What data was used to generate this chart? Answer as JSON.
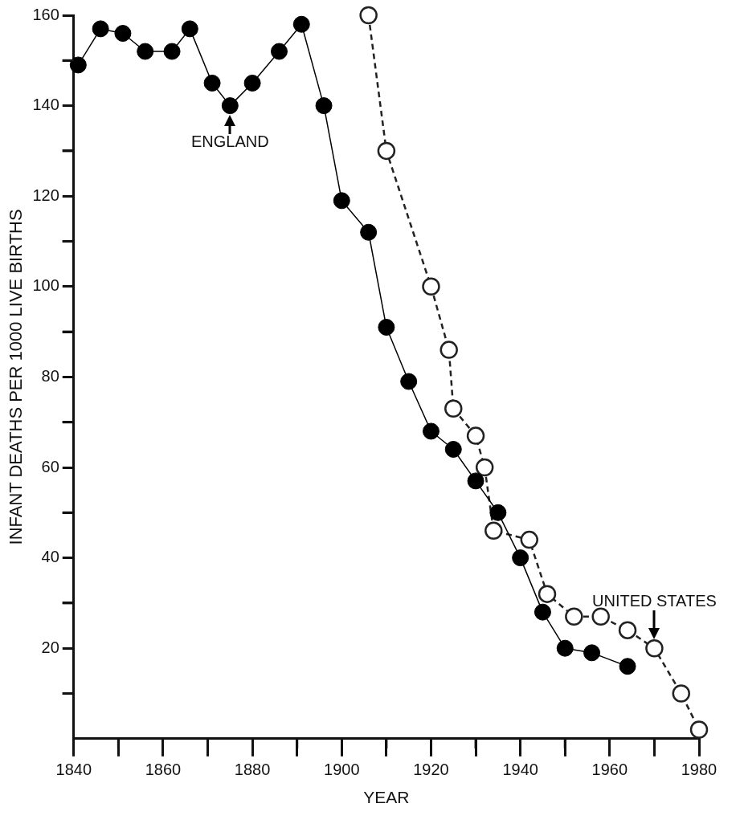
{
  "chart_data": {
    "type": "line",
    "xlabel": "YEAR",
    "ylabel": "INFANT DEATHS PER 1000 LIVE BIRTHS",
    "xlim": [
      1840,
      1980
    ],
    "xticks": [
      1840,
      {
        "value": 1850,
        "label": null
      },
      1860,
      {
        "value": 1870,
        "label": null
      },
      1880,
      {
        "value": 1890,
        "label": null
      },
      1900,
      {
        "value": 1910,
        "label": null
      },
      1920,
      {
        "value": 1930,
        "label": null
      },
      1940,
      {
        "value": 1950,
        "label": null
      },
      1960,
      {
        "value": 1970,
        "label": null
      },
      1980
    ],
    "ylim": [
      0,
      160
    ],
    "yticks": [
      {
        "value": 10,
        "label": null
      },
      20,
      {
        "value": 30,
        "label": null
      },
      40,
      {
        "value": 50,
        "label": null
      },
      60,
      {
        "value": 70,
        "label": null
      },
      80,
      {
        "value": 90,
        "label": null
      },
      100,
      {
        "value": 110,
        "label": null
      },
      120,
      {
        "value": 130,
        "label": null
      },
      140,
      {
        "value": 150,
        "label": null
      },
      160
    ],
    "grid": false,
    "legend": false,
    "marker": "circle",
    "series": [
      {
        "color": "#000000",
        "line_style": "solid",
        "x": [
          1841,
          1846,
          1851,
          1856,
          1862,
          1866,
          1871,
          1875,
          1880,
          1886,
          1891,
          1896,
          1900,
          1906,
          1910,
          1915,
          1920,
          1925,
          1930,
          1935,
          1940,
          1945,
          1950,
          1956,
          1964
        ],
        "values": [
          149,
          157,
          156,
          152,
          152,
          157,
          145,
          140,
          145,
          152,
          158,
          140,
          119,
          112,
          91,
          79,
          68,
          64,
          57,
          50,
          40,
          28,
          20,
          19,
          16
        ]
      },
      {
        "color": "#222222",
        "line_style": "dashed",
        "x": [
          1906,
          1910,
          1920,
          1924,
          1925,
          1930,
          1932,
          1934,
          1942,
          1946,
          1952,
          1958,
          1964,
          1970,
          1976,
          1980
        ],
        "values": [
          160,
          130,
          100,
          86,
          73,
          67,
          60,
          46,
          44,
          32,
          27,
          27,
          24,
          20,
          10,
          2
        ]
      }
    ],
    "annotations": [
      {
        "text": "ENGLAND",
        "x": 1875,
        "y": 140
      },
      {
        "text": "UNITED STATES",
        "x": 1970,
        "y": 20
      }
    ]
  }
}
